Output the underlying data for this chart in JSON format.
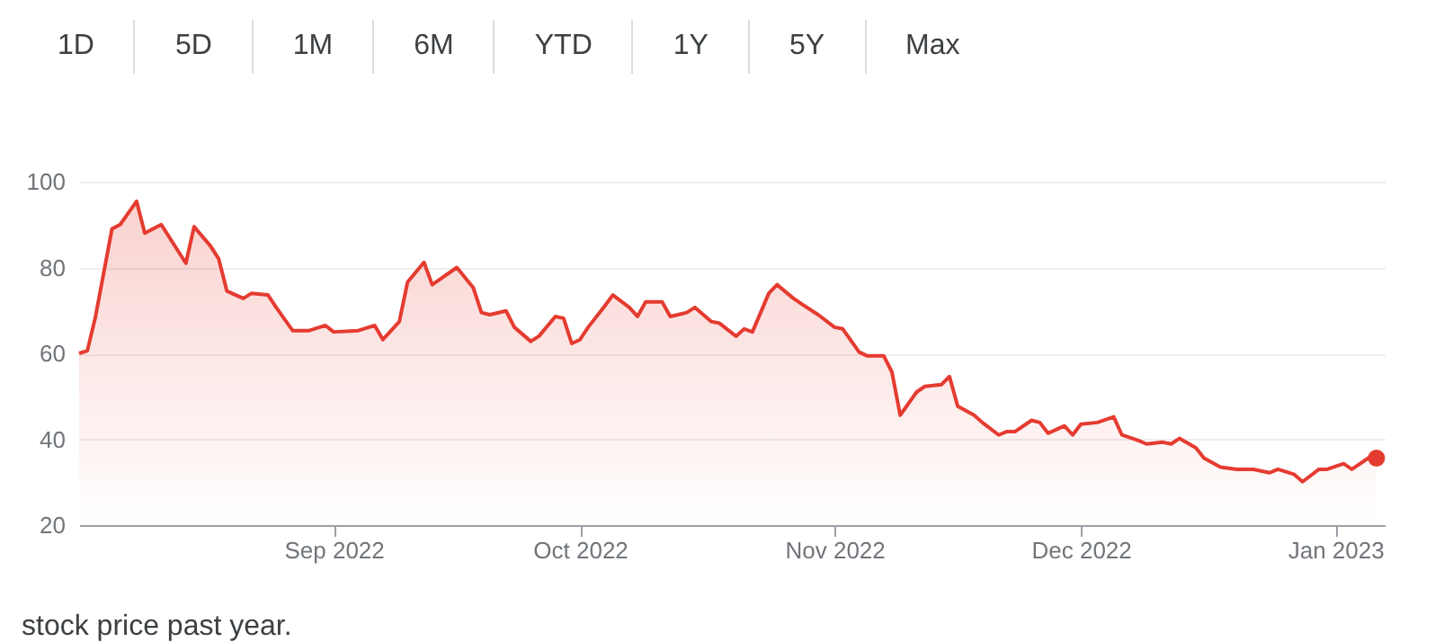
{
  "chart_data": {
    "type": "area",
    "annotations": [
      "1D",
      "5D",
      "1M",
      "6M",
      "YTD",
      "1Y",
      "5Y",
      "Max",
      "stock price past year."
    ],
    "x": [
      "2022-08-01",
      "2022-08-02",
      "2022-08-03",
      "2022-08-05",
      "2022-08-06",
      "2022-08-08",
      "2022-08-09",
      "2022-08-11",
      "2022-08-14",
      "2022-08-15",
      "2022-08-17",
      "2022-08-18",
      "2022-08-19",
      "2022-08-21",
      "2022-08-22",
      "2022-08-24",
      "2022-08-25",
      "2022-08-27",
      "2022-08-29",
      "2022-08-31",
      "2022-09-01",
      "2022-09-04",
      "2022-09-06",
      "2022-09-07",
      "2022-09-09",
      "2022-09-10",
      "2022-09-12",
      "2022-09-13",
      "2022-09-16",
      "2022-09-18",
      "2022-09-19",
      "2022-09-20",
      "2022-09-22",
      "2022-09-23",
      "2022-09-25",
      "2022-09-26",
      "2022-09-28",
      "2022-09-29",
      "2022-09-30",
      "2022-10-01",
      "2022-10-02",
      "2022-10-04",
      "2022-10-05",
      "2022-10-07",
      "2022-10-08",
      "2022-10-09",
      "2022-10-11",
      "2022-10-12",
      "2022-10-14",
      "2022-10-15",
      "2022-10-17",
      "2022-10-18",
      "2022-10-20",
      "2022-10-21",
      "2022-10-22",
      "2022-10-24",
      "2022-10-25",
      "2022-10-27",
      "2022-10-28",
      "2022-10-30",
      "2022-11-01",
      "2022-11-02",
      "2022-11-04",
      "2022-11-05",
      "2022-11-07",
      "2022-11-08",
      "2022-11-09",
      "2022-11-11",
      "2022-11-12",
      "2022-11-14",
      "2022-11-15",
      "2022-11-16",
      "2022-11-18",
      "2022-11-19",
      "2022-11-21",
      "2022-11-22",
      "2022-11-23",
      "2022-11-25",
      "2022-11-26",
      "2022-11-27",
      "2022-11-29",
      "2022-11-30",
      "2022-12-01",
      "2022-12-03",
      "2022-12-05",
      "2022-12-06",
      "2022-12-08",
      "2022-12-09",
      "2022-12-11",
      "2022-12-12",
      "2022-12-13",
      "2022-12-15",
      "2022-12-16",
      "2022-12-18",
      "2022-12-20",
      "2022-12-22",
      "2022-12-24",
      "2022-12-25",
      "2022-12-27",
      "2022-12-28",
      "2022-12-30",
      "2022-12-31",
      "2023-01-02",
      "2023-01-03",
      "2023-01-05",
      "2023-01-06"
    ],
    "series": [
      {
        "color": "#e53b30",
        "values": [
          60,
          60.6,
          68.6,
          89,
          90,
          95.4,
          88,
          90,
          81,
          89.5,
          85,
          82,
          74.5,
          72.8,
          74,
          73.6,
          70.7,
          65.3,
          65.3,
          66.5,
          65,
          65.3,
          66.5,
          63.2,
          67.4,
          76.6,
          81.2,
          76,
          80,
          75.3,
          69.5,
          69,
          69.9,
          66.1,
          62.8,
          64,
          68.6,
          68.2,
          62.3,
          63.2,
          66.1,
          71,
          73.6,
          70.7,
          68.6,
          72,
          72,
          68.6,
          69.5,
          70.7,
          67.4,
          67,
          64,
          65.7,
          65,
          74,
          76,
          72.8,
          71.5,
          69,
          66.1,
          65.7,
          60.3,
          59.4,
          59.4,
          55.6,
          45.6,
          51,
          52.3,
          52.7,
          54.6,
          47.7,
          45.6,
          43.9,
          41,
          41.8,
          41.8,
          44.4,
          43.9,
          41.4,
          43.1,
          41,
          43.5,
          43.9,
          45.2,
          41,
          39.7,
          38.9,
          39.3,
          38.9,
          40.2,
          38,
          35.6,
          33.5,
          33,
          33,
          32.2,
          33,
          31.8,
          30.1,
          33,
          33,
          34.3,
          33,
          35.6,
          35.6
        ]
      },
      {
        "type": "scatter",
        "marker": "circle",
        "color": "#e53b30",
        "x": [
          "2023-01-06"
        ],
        "values": [
          35.6
        ]
      }
    ],
    "xlim": [
      "2022-08-01",
      "2023-01-07"
    ],
    "xticks": [
      {
        "value": "2022-09-01",
        "label": "Sep 2022"
      },
      {
        "value": "2022-10-01",
        "label": "Oct 2022"
      },
      {
        "value": "2022-11-01",
        "label": "Nov 2022"
      },
      {
        "value": "2022-12-01",
        "label": "Dec 2022"
      },
      {
        "value": "2023-01-01",
        "label": "Jan 2023"
      }
    ],
    "ylim": [
      20,
      100
    ],
    "yticks": [
      20,
      40,
      60,
      80,
      100
    ],
    "grid": "y"
  }
}
